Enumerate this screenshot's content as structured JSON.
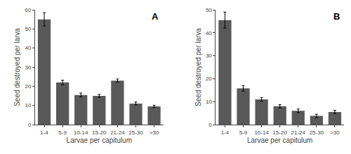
{
  "chart_data": [
    {
      "type": "bar",
      "annotations": [
        "A"
      ],
      "xlabel": "Larvae per capitulum",
      "ylabel": "Seed destroyed per larva",
      "categories": [
        "1-4",
        "5-9",
        "10-14",
        "15-20",
        "21-24",
        "25-30",
        ">30"
      ],
      "values": [
        55.0,
        22.0,
        15.5,
        15.0,
        23.0,
        11.0,
        9.5
      ],
      "errors": [
        3.5,
        1.2,
        1.0,
        0.8,
        0.8,
        0.8,
        0.6
      ],
      "color": "#595959",
      "ylim": [
        0,
        60
      ],
      "yticks": [
        0,
        10,
        20,
        30,
        40,
        50,
        60
      ],
      "grid": false
    },
    {
      "type": "bar",
      "annotations": [
        "B"
      ],
      "xlabel": "Larvae per capitulum",
      "ylabel": "Seed destroyed per larva",
      "categories": [
        "1-4",
        "5-9",
        "10-14",
        "15-20",
        "21-24",
        "25-30",
        ">30"
      ],
      "values": [
        45.5,
        15.8,
        11.0,
        8.0,
        6.0,
        3.8,
        5.5
      ],
      "errors": [
        3.5,
        1.2,
        0.8,
        0.7,
        0.8,
        0.7,
        0.7
      ],
      "color": "#595959",
      "ylim": [
        0,
        50
      ],
      "yticks": [
        0,
        10,
        20,
        30,
        40,
        50
      ],
      "grid": false
    }
  ]
}
